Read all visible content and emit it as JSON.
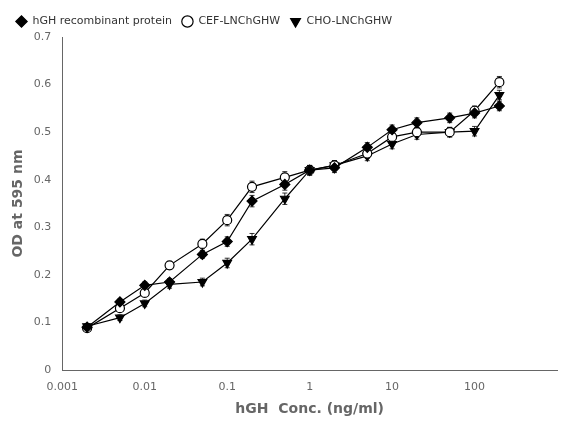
{
  "chart_data": {
    "type": "line",
    "xlabel": "hGH  Conc. (ng/ml)",
    "ylabel": "OD at 595 nm",
    "log": "x",
    "grid": false,
    "legend": "upper left",
    "xlim": [
      0.001,
      1000
    ],
    "ylim": [
      0.0,
      0.7
    ],
    "xticks": [
      0.001,
      0.01,
      0.1,
      1,
      10,
      100
    ],
    "yticks": [
      0.0,
      0.1,
      0.2,
      0.3,
      0.4,
      0.5,
      0.6,
      0.7
    ],
    "series": [
      {
        "name": "hGH recombinant protein",
        "color": "black",
        "marker": "diamond",
        "line_style": "solid",
        "x": [
          0.002,
          0.005,
          0.01,
          0.02,
          0.05,
          0.1,
          0.2,
          0.5,
          1.0,
          2.0,
          5.0,
          10.0,
          20.0,
          50.0,
          100.0,
          200.0
        ],
        "values": [
          0.09,
          0.143,
          0.178,
          0.185,
          0.243,
          0.27,
          0.355,
          0.39,
          0.42,
          0.425,
          0.468,
          0.505,
          0.52,
          0.53,
          0.54,
          0.555
        ],
        "yerr": [
          0.005,
          0.006,
          0.007,
          0.007,
          0.008,
          0.01,
          0.012,
          0.012,
          0.01,
          0.01,
          0.01,
          0.01,
          0.01,
          0.01,
          0.01,
          0.01
        ]
      },
      {
        "name": "CEF-LNChGHW",
        "color": "black",
        "marker": "open_circle",
        "line_style": "solid",
        "x": [
          0.002,
          0.005,
          0.01,
          0.02,
          0.05,
          0.1,
          0.2,
          0.5,
          1.0,
          2.0,
          5.0,
          10.0,
          20.0,
          50.0,
          100.0,
          200.0
        ],
        "values": [
          0.088,
          0.13,
          0.162,
          0.22,
          0.265,
          0.315,
          0.385,
          0.405,
          0.42,
          0.43,
          0.455,
          0.49,
          0.5,
          0.5,
          0.545,
          0.605
        ],
        "yerr": [
          0.005,
          0.006,
          0.008,
          0.008,
          0.01,
          0.012,
          0.012,
          0.012,
          0.01,
          0.01,
          0.01,
          0.01,
          0.01,
          0.01,
          0.01,
          0.012
        ]
      },
      {
        "name": "CHO-LNChGHW",
        "color": "black",
        "marker": "triangle_down",
        "line_style": "solid",
        "x": [
          0.002,
          0.005,
          0.01,
          0.02,
          0.05,
          0.1,
          0.2,
          0.5,
          1.0,
          2.0,
          5.0,
          10.0,
          20.0,
          50.0,
          100.0,
          200.0
        ],
        "values": [
          0.092,
          0.11,
          0.14,
          0.18,
          0.185,
          0.225,
          0.275,
          0.36,
          0.42,
          0.43,
          0.45,
          0.475,
          0.495,
          0.5,
          0.502,
          0.578
        ],
        "yerr": [
          0.005,
          0.006,
          0.007,
          0.008,
          0.008,
          0.01,
          0.012,
          0.012,
          0.01,
          0.01,
          0.01,
          0.01,
          0.01,
          0.01,
          0.01,
          0.01
        ]
      }
    ]
  }
}
